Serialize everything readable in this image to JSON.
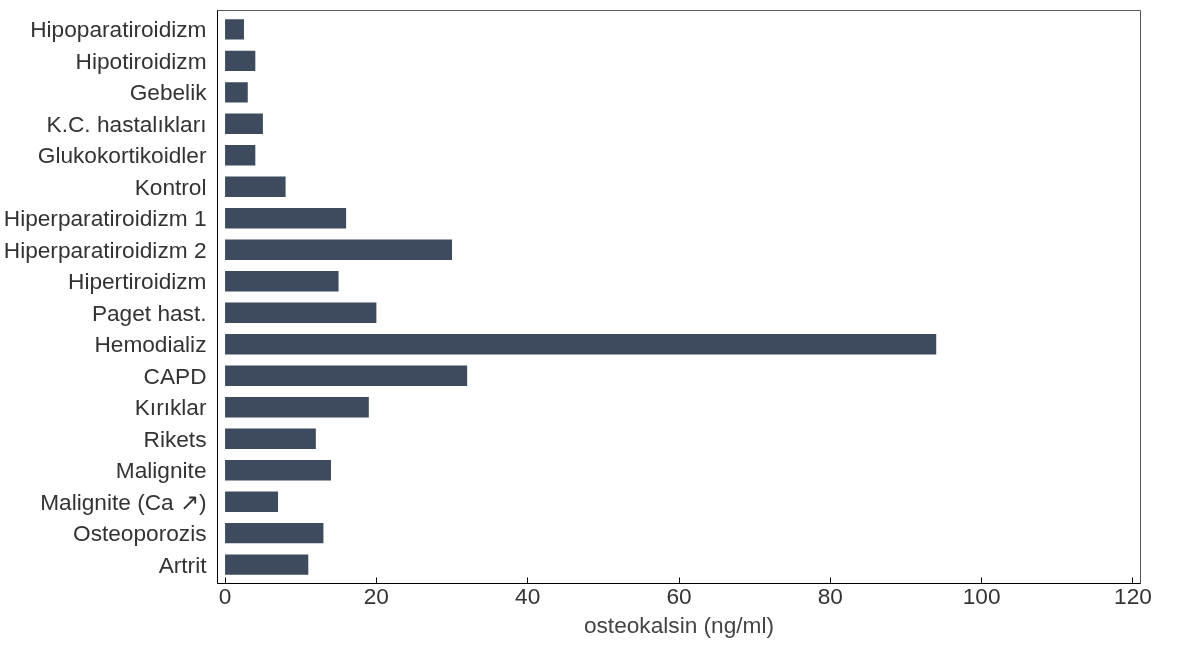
{
  "chart_data": {
    "type": "bar",
    "orientation": "horizontal",
    "xlabel": "osteokalsin (ng/ml)",
    "categories": [
      "Hipoparatiroidizm",
      "Hipotiroidizm",
      "Gebelik",
      "K.C. hastalıkları",
      "Glukokortikoidler",
      "Kontrol",
      "Hiperparatiroidizm 1",
      "Hiperparatiroidizm 2",
      "Hipertiroidizm",
      "Paget hast.",
      "Hemodializ",
      "CAPD",
      "Kırıklar",
      "Rikets",
      "Malignite",
      "Malignite (Ca ↗)",
      "Osteoporozis",
      "Artrit"
    ],
    "values": [
      2.5,
      4,
      3,
      5,
      4,
      8,
      16,
      30,
      15,
      20,
      94,
      32,
      19,
      12,
      14,
      7,
      13,
      11
    ],
    "color": "#3e4a5e",
    "xlim": [
      -1,
      121
    ],
    "xticks": [
      0,
      20,
      40,
      60,
      80,
      100,
      120
    ],
    "grid": false
  }
}
